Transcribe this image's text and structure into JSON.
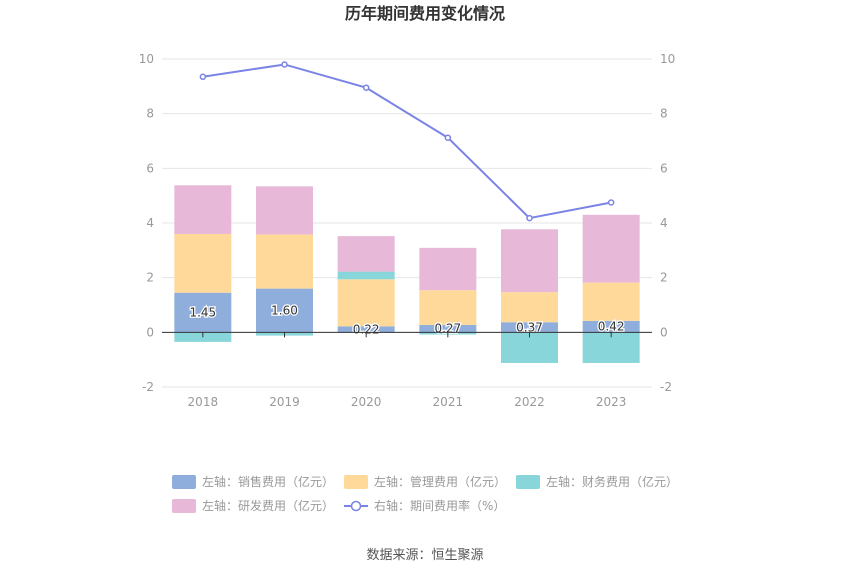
{
  "chart_data": {
    "type": "bar",
    "title": "历年期间费用变化情况",
    "categories": [
      "2018",
      "2019",
      "2020",
      "2021",
      "2022",
      "2023"
    ],
    "ylim_left": [
      -2,
      10
    ],
    "ylim_right": [
      -2,
      10
    ],
    "y_ticks": [
      "-2",
      "0",
      "2",
      "4",
      "6",
      "8",
      "10"
    ],
    "stacked": true,
    "grid": true,
    "legend_position": "bottom",
    "series": [
      {
        "name": "左轴：销售费用（亿元）",
        "axis": "left",
        "type": "bar",
        "color": "#8faedc",
        "values": [
          1.45,
          1.6,
          0.22,
          0.27,
          0.37,
          0.42
        ],
        "labels": [
          "1.45",
          "1.60",
          "0.22",
          "0.27",
          "0.37",
          "0.42"
        ]
      },
      {
        "name": "左轴：管理费用（亿元）",
        "axis": "left",
        "type": "bar",
        "color": "#ffd99a",
        "values": [
          2.15,
          1.98,
          1.72,
          1.27,
          1.1,
          1.4
        ]
      },
      {
        "name": "左轴：财务费用（亿元）",
        "axis": "left",
        "type": "bar",
        "color": "#88d6da",
        "values": [
          -0.35,
          -0.12,
          0.28,
          -0.08,
          -1.12,
          -1.12
        ]
      },
      {
        "name": "左轴：研发费用（亿元）",
        "axis": "left",
        "type": "bar",
        "color": "#e8b8d8",
        "values": [
          1.78,
          1.76,
          1.3,
          1.55,
          2.3,
          2.48
        ]
      },
      {
        "name": "右轴：期间费用率（%）",
        "axis": "right",
        "type": "line",
        "color": "#7a84e6",
        "values": [
          9.35,
          9.8,
          8.95,
          7.12,
          4.18,
          4.75
        ]
      }
    ]
  },
  "footer": {
    "source": "数据来源：恒生聚源"
  }
}
